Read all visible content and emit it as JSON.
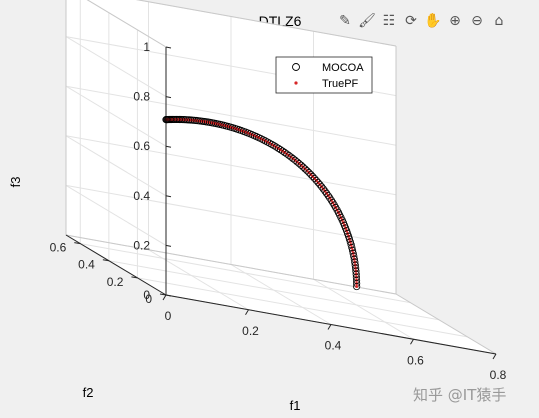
{
  "toolbar": [
    {
      "name": "edit-plot-icon",
      "glyph": "✎"
    },
    {
      "name": "brush-icon",
      "glyph": "🖌"
    },
    {
      "name": "data-tips-icon",
      "glyph": "☷"
    },
    {
      "name": "rotate-3d-icon",
      "glyph": "⟳"
    },
    {
      "name": "pan-icon",
      "glyph": "✋"
    },
    {
      "name": "zoom-in-icon",
      "glyph": "⊕"
    },
    {
      "name": "zoom-out-icon",
      "glyph": "⊖"
    },
    {
      "name": "home-icon",
      "glyph": "⌂"
    }
  ],
  "watermark": "知乎 @IT猿手",
  "chart_data": {
    "type": "scatter",
    "title": "DTLZ6",
    "xlabel": "f1",
    "ylabel": "f2",
    "zlabel": "f3",
    "xlim": [
      0,
      0.8
    ],
    "ylim": [
      0,
      0.7
    ],
    "zlim": [
      0,
      1
    ],
    "xticks": [
      "0",
      "0.2",
      "0.4",
      "0.6",
      "0.8"
    ],
    "yticks": [
      "0",
      "0.2",
      "0.4",
      "0.6"
    ],
    "zticks": [
      "0",
      "0.2",
      "0.4",
      "0.6",
      "0.8",
      "1"
    ],
    "grid": true,
    "legend_position": "top-right",
    "colors": {
      "mocoa": "#000000",
      "truepf": "#d62728",
      "axis": "#262626",
      "grid": "#e3e3e3"
    },
    "series": [
      {
        "name": "MOCOA",
        "marker": "circle",
        "curve": {
          "f1": [
            0,
            0.7071
          ],
          "f2": [
            0,
            0.7071
          ],
          "f3": [
            0.7071,
            0
          ]
        }
      },
      {
        "name": "TruePF",
        "marker": "dot",
        "curve": {
          "f1": [
            0,
            0.7071
          ],
          "f2": [
            0,
            0.7071
          ],
          "f3": [
            0.7071,
            0
          ]
        }
      }
    ]
  }
}
